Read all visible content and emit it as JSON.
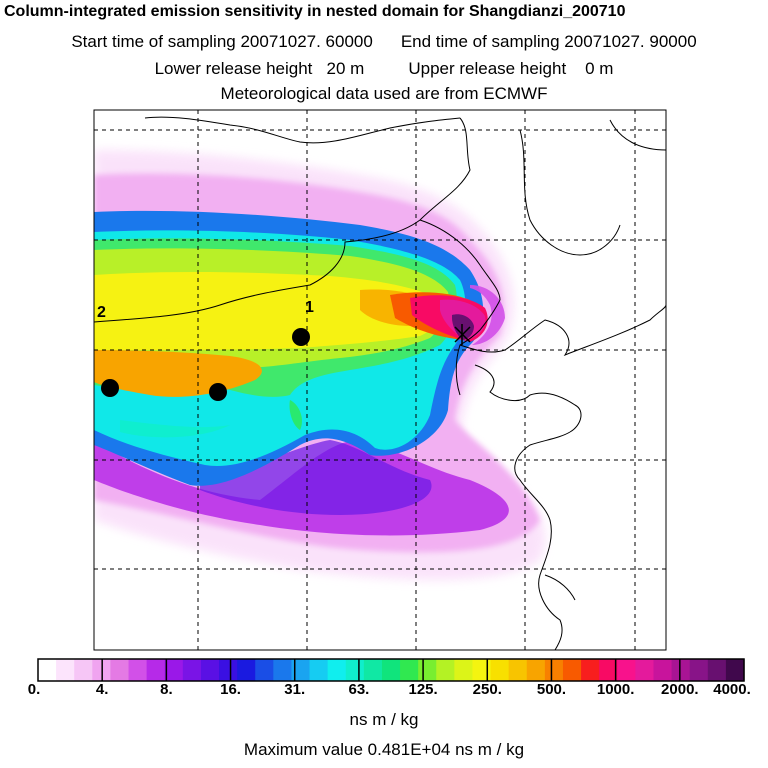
{
  "title": {
    "line1": "Column-integrated emission sensitivity in nested domain for Shangdianzi_200710",
    "start_label": "Start time of sampling 20071027. 60000",
    "end_label": "End time of sampling 20071027. 90000",
    "lower_label": "Lower release height   20 m",
    "upper_label": "Upper release height    0 m",
    "met_label": "Meteorological data used are from ECMWF"
  },
  "map": {
    "site_labels": [
      "1",
      "2"
    ]
  },
  "colorbar": {
    "labels": [
      "0.",
      "4.",
      "8.",
      "16.",
      "31.",
      "63.",
      "125.",
      "250.",
      "500.",
      "1000.",
      "2000.",
      "4000."
    ],
    "colors": [
      "#ffffff",
      "#fce4fc",
      "#f6c6f6",
      "#f0a4f0",
      "#e47ae4",
      "#d250e8",
      "#b62ae8",
      "#9a18e8",
      "#7a14e6",
      "#5a10e4",
      "#3a10e2",
      "#1a1ae0",
      "#1a4ee6",
      "#1a78ec",
      "#1aa4f0",
      "#16ccf2",
      "#10eeee",
      "#10eecc",
      "#10e8a4",
      "#10e47c",
      "#30e850",
      "#78ee30",
      "#b4f224",
      "#dcf418",
      "#f4f410",
      "#f8e000",
      "#f8c400",
      "#f8a400",
      "#f88000",
      "#f85a00",
      "#f81e1e",
      "#f80a64",
      "#f8128c",
      "#e41a9c",
      "#c8149c",
      "#a81494",
      "#881488",
      "#681070",
      "#40084c"
    ],
    "unit": "ns m / kg",
    "max_label": "Maximum value  0.481E+04 ns m / kg"
  }
}
